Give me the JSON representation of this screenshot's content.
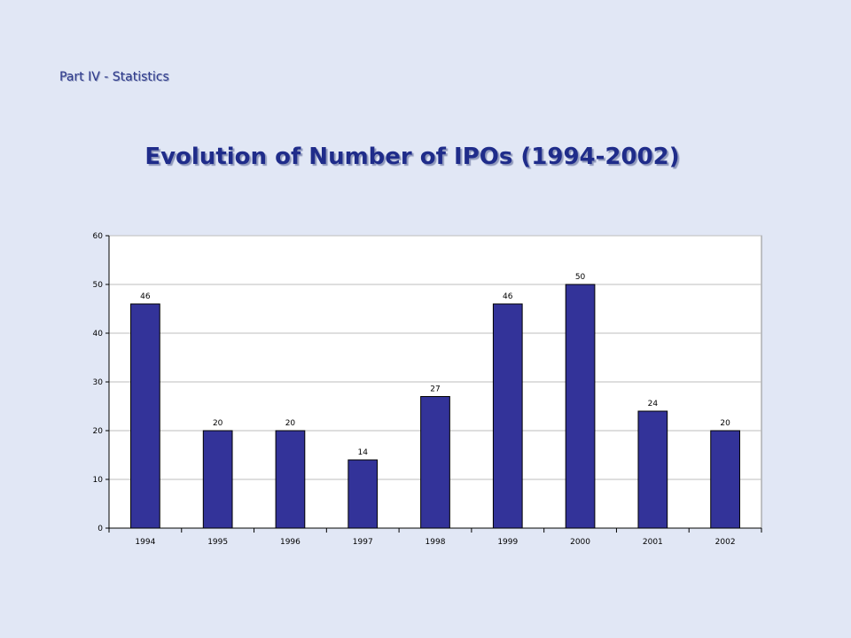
{
  "slide": {
    "section_label": "Part IV - Statistics",
    "title": "Evolution of Number of IPOs (1994-2002)"
  },
  "chart_data": {
    "type": "bar",
    "categories": [
      "1994",
      "1995",
      "1996",
      "1997",
      "1998",
      "1999",
      "2000",
      "2001",
      "2002"
    ],
    "values": [
      46,
      20,
      20,
      14,
      27,
      46,
      50,
      24,
      20
    ],
    "ylim": [
      0,
      60
    ],
    "yticks": [
      0,
      10,
      20,
      30,
      40,
      50,
      60
    ],
    "grid": true,
    "legend": "none",
    "data_labels": true,
    "colors": {
      "bar": "#333399",
      "bar_border": "#000000",
      "plot_background": "#ffffff",
      "grid": "#bdbdbd"
    }
  }
}
